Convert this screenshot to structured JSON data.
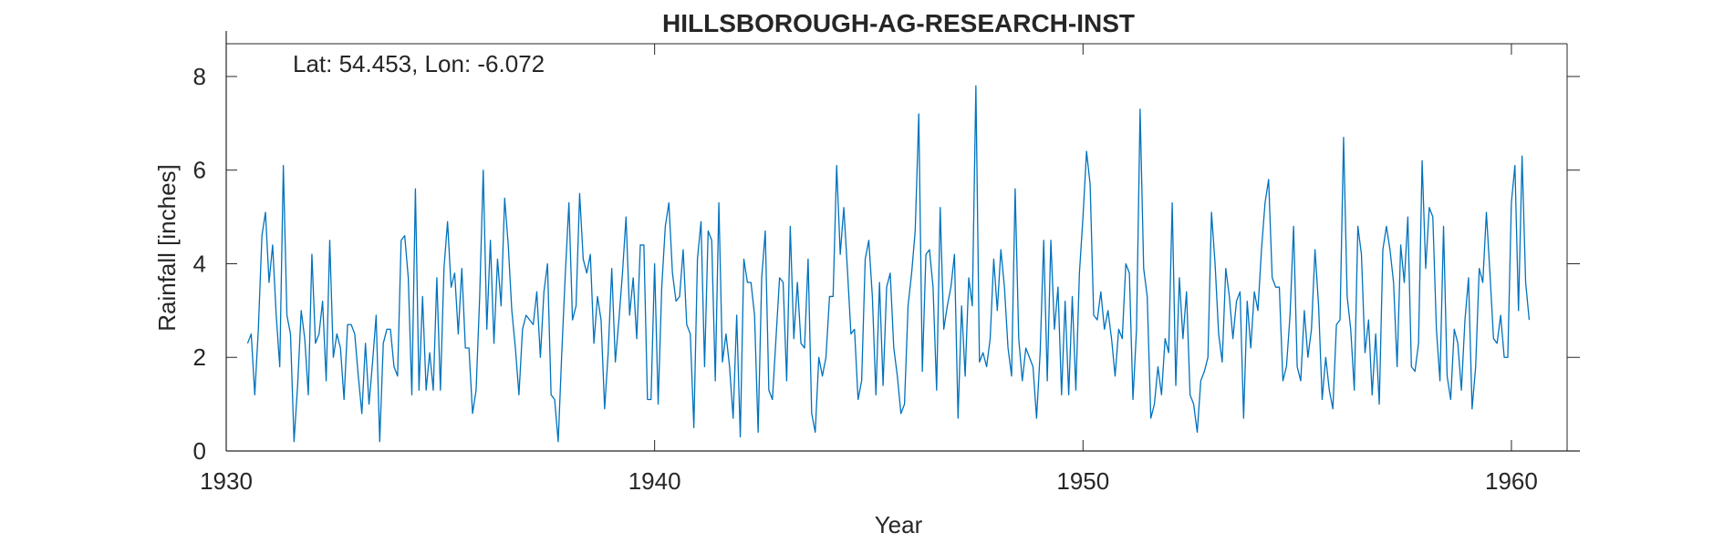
{
  "chart_data": {
    "type": "line",
    "title": "HILLSBOROUGH-AG-RESEARCH-INST",
    "annotation": "Lat: 54.453, Lon: -6.072",
    "xlabel": "Year",
    "ylabel": "Rainfall [inches]",
    "xlim": [
      1930,
      1961.3
    ],
    "ylim": [
      0,
      8.7
    ],
    "xticks": [
      1930,
      1940,
      1950,
      1960
    ],
    "xtick_labels": [
      "1930",
      "1940",
      "1950",
      "1960"
    ],
    "yticks": [
      0,
      2,
      4,
      6,
      8
    ],
    "ytick_labels": [
      "0",
      "2",
      "4",
      "6",
      "8"
    ],
    "grid": false,
    "line_color": "#0072bd",
    "x_start": 1930.5,
    "x_step": 0.08333,
    "series": [
      {
        "values": [
          2.3,
          2.5,
          1.2,
          2.6,
          4.6,
          5.1,
          3.6,
          4.4,
          2.9,
          1.8,
          6.1,
          2.9,
          2.5,
          0.2,
          1.4,
          3.0,
          2.4,
          1.2,
          4.2,
          2.3,
          2.5,
          3.2,
          1.5,
          4.5,
          2.0,
          2.5,
          2.2,
          1.1,
          2.7,
          2.7,
          2.5,
          1.6,
          0.8,
          2.3,
          1.0,
          1.9,
          2.9,
          0.2,
          2.3,
          2.6,
          2.6,
          1.8,
          1.6,
          4.5,
          4.6,
          3.7,
          1.2,
          5.6,
          1.3,
          3.3,
          1.3,
          2.1,
          1.3,
          3.7,
          1.3,
          3.9,
          4.9,
          3.5,
          3.8,
          2.5,
          3.9,
          2.2,
          2.2,
          0.8,
          1.3,
          3.3,
          6.0,
          2.6,
          4.5,
          2.3,
          4.1,
          3.1,
          5.4,
          4.4,
          3.0,
          2.2,
          1.2,
          2.6,
          2.9,
          2.8,
          2.7,
          3.4,
          2.0,
          3.4,
          4.0,
          1.2,
          1.1,
          0.2,
          2.1,
          3.8,
          5.3,
          2.8,
          3.1,
          5.5,
          4.1,
          3.8,
          4.2,
          2.3,
          3.3,
          2.8,
          0.9,
          2.1,
          3.9,
          1.9,
          2.8,
          3.8,
          5.0,
          2.9,
          3.7,
          2.4,
          4.4,
          4.4,
          1.1,
          1.1,
          4.0,
          1.0,
          3.5,
          4.8,
          5.3,
          3.8,
          3.2,
          3.3,
          4.3,
          2.7,
          2.5,
          0.5,
          4.1,
          4.9,
          1.8,
          4.7,
          4.5,
          1.5,
          5.3,
          1.9,
          2.5,
          1.8,
          0.7,
          2.9,
          0.3,
          4.1,
          3.6,
          3.6,
          2.9,
          0.4,
          3.7,
          4.7,
          1.3,
          1.1,
          2.4,
          3.7,
          3.6,
          1.5,
          4.8,
          2.4,
          3.6,
          2.3,
          2.2,
          4.1,
          0.8,
          0.4,
          2.0,
          1.6,
          2.0,
          3.3,
          3.3,
          6.1,
          4.2,
          5.2,
          3.9,
          2.5,
          2.6,
          1.1,
          1.5,
          4.1,
          4.5,
          3.3,
          1.2,
          3.6,
          1.4,
          3.5,
          3.8,
          2.2,
          1.6,
          0.8,
          1.0,
          3.1,
          3.8,
          4.7,
          7.2,
          1.7,
          4.2,
          4.3,
          3.5,
          1.3,
          5.2,
          2.6,
          3.1,
          3.5,
          4.2,
          0.7,
          3.1,
          1.6,
          3.7,
          3.1,
          7.8,
          1.9,
          2.1,
          1.8,
          2.4,
          4.1,
          3.0,
          4.3,
          3.5,
          2.2,
          1.6,
          5.6,
          2.4,
          1.5,
          2.2,
          2.0,
          1.8,
          0.7,
          2.1,
          4.5,
          1.5,
          4.5,
          2.6,
          3.5,
          1.2,
          3.2,
          1.2,
          3.3,
          1.3,
          3.8,
          5.0,
          6.4,
          5.7,
          2.9,
          2.8,
          3.4,
          2.6,
          3.0,
          2.4,
          1.6,
          2.6,
          2.4,
          4.0,
          3.8,
          1.1,
          2.6,
          7.3,
          3.9,
          3.3,
          0.7,
          1.0,
          1.8,
          1.2,
          2.4,
          2.1,
          5.3,
          1.4,
          3.7,
          2.4,
          3.4,
          1.2,
          1.0,
          0.4,
          1.5,
          1.7,
          2.0,
          5.1,
          4.0,
          2.5,
          1.9,
          3.9,
          3.3,
          2.4,
          3.2,
          3.4,
          0.7,
          3.2,
          2.2,
          3.4,
          3.0,
          4.3,
          5.3,
          5.8,
          3.7,
          3.5,
          3.5,
          1.5,
          1.8,
          2.9,
          4.8,
          1.8,
          1.5,
          3.0,
          2.0,
          2.6,
          4.3,
          3.1,
          1.1,
          2.0,
          1.3,
          0.9,
          2.7,
          2.8,
          6.7,
          3.3,
          2.6,
          1.3,
          4.8,
          4.2,
          2.1,
          2.8,
          1.2,
          2.5,
          1.0,
          4.3,
          4.8,
          4.3,
          3.6,
          1.8,
          4.4,
          3.6,
          5.0,
          1.8,
          1.7,
          2.3,
          6.2,
          3.9,
          5.2,
          5.0,
          2.6,
          1.5,
          4.8,
          1.6,
          1.1,
          2.6,
          2.3,
          1.3,
          2.8,
          3.7,
          0.9,
          1.8,
          3.9,
          3.6,
          5.1,
          3.8,
          2.4,
          2.3,
          2.9,
          2.0,
          2.0,
          5.3,
          6.1,
          3.0,
          6.3,
          3.6,
          2.8
        ]
      }
    ]
  }
}
